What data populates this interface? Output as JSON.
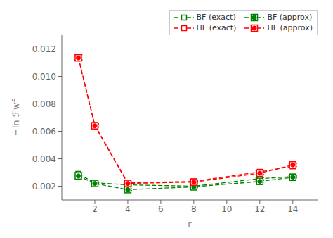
{
  "chart_data": {
    "type": "line",
    "xlabel": "r",
    "ylabel": "−ln ℱwf",
    "x": [
      1,
      2,
      4,
      8,
      12,
      14
    ],
    "xlim": [
      0.0,
      15.5
    ],
    "xticks": [
      2,
      4,
      6,
      8,
      10,
      12,
      14
    ],
    "ylim": [
      0.001,
      0.013
    ],
    "yticks": [
      0.002,
      0.004,
      0.006,
      0.008,
      {
        "value": 0.01,
        "label": "0.010"
      },
      0.012
    ],
    "grid": false,
    "legend": "upper right",
    "series": [
      {
        "name": "BF (exact)",
        "color": "#008000",
        "marker": "square",
        "line_style": "dashed",
        "values": [
          0.0029,
          0.00225,
          0.0021,
          0.002,
          0.00255,
          0.0027
        ],
        "yerr": [
          0.0001,
          7e-05,
          7e-05,
          7e-05,
          7e-05,
          7e-05
        ]
      },
      {
        "name": "BF (approx)",
        "color": "#008000",
        "marker": "circle",
        "line_style": "dashed",
        "values": [
          0.00275,
          0.0022,
          0.00175,
          0.00195,
          0.00235,
          0.00265
        ],
        "yerr": [
          7e-05,
          6e-05,
          6e-05,
          6e-05,
          6e-05,
          6e-05
        ]
      },
      {
        "name": "HF (exact)",
        "color": "#FF0000",
        "marker": "square",
        "line_style": "dashed",
        "values": [
          0.0114,
          0.00645,
          0.00225,
          0.00235,
          0.00305,
          0.00345
        ],
        "yerr": [
          0.0002,
          0.00012,
          8e-05,
          8e-05,
          8e-05,
          0.0001
        ]
      },
      {
        "name": "HF (approx)",
        "color": "#FF0000",
        "marker": "circle",
        "line_style": "dashed",
        "values": [
          0.01135,
          0.0064,
          0.0022,
          0.0023,
          0.00295,
          0.00355
        ],
        "yerr": [
          0.00015,
          0.00012,
          8e-05,
          8e-05,
          8e-05,
          0.0001
        ]
      }
    ]
  }
}
